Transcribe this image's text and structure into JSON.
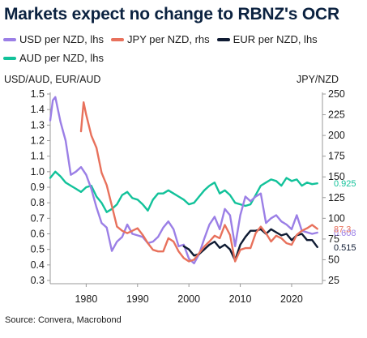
{
  "title": "Markets expect no change to RBNZ's OCR",
  "source": "Source: Convera, Macrobond",
  "legend": [
    {
      "key": "usd",
      "label": "USD per NZD, lhs",
      "color": "#9b7fe6"
    },
    {
      "key": "jpy",
      "label": "JPY per NZD, rhs",
      "color": "#e8715c"
    },
    {
      "key": "eur",
      "label": "EUR per NZD, lhs",
      "color": "#0f1b33"
    },
    {
      "key": "aud",
      "label": "AUD per NZD, lhs",
      "color": "#12c29a"
    }
  ],
  "chart_data": {
    "type": "line",
    "title": "Markets expect no change to RBNZ's OCR",
    "left_axis": {
      "label": "USD/AUD, EUR/AUD",
      "range": [
        0.3,
        1.5
      ],
      "ticks": [
        "1.5",
        "1.4",
        "1.3",
        "1.2",
        "1.1",
        "1.0",
        "0.9",
        "0.8",
        "0.7",
        "0.6",
        "0.5",
        "0.4",
        "0.3"
      ]
    },
    "right_axis": {
      "label": "JPY/NZD",
      "range": [
        25,
        250
      ],
      "ticks": [
        "250",
        "225",
        "200",
        "175",
        "150",
        "125",
        "100",
        "75",
        "50",
        "25"
      ]
    },
    "x_axis": {
      "range": [
        1973,
        2026
      ],
      "ticks": [
        "1980",
        "1990",
        "2000",
        "2010",
        "2020"
      ]
    },
    "grid": false,
    "legend_position": "top",
    "series": [
      {
        "name": "AUD per NZD, lhs",
        "axis": "left",
        "color": "#12c29a",
        "end_label": "0.925",
        "points": [
          [
            1973,
            0.96
          ],
          [
            1974,
            1.0
          ],
          [
            1975,
            0.97
          ],
          [
            1976,
            0.93
          ],
          [
            1977,
            0.91
          ],
          [
            1978,
            0.89
          ],
          [
            1979,
            0.87
          ],
          [
            1980,
            0.9
          ],
          [
            1981,
            0.91
          ],
          [
            1982,
            0.84
          ],
          [
            1983,
            0.8
          ],
          [
            1984,
            0.74
          ],
          [
            1985,
            0.76
          ],
          [
            1986,
            0.79
          ],
          [
            1987,
            0.85
          ],
          [
            1988,
            0.87
          ],
          [
            1989,
            0.83
          ],
          [
            1990,
            0.82
          ],
          [
            1991,
            0.79
          ],
          [
            1992,
            0.75
          ],
          [
            1993,
            0.82
          ],
          [
            1994,
            0.86
          ],
          [
            1995,
            0.86
          ],
          [
            1996,
            0.88
          ],
          [
            1997,
            0.86
          ],
          [
            1998,
            0.84
          ],
          [
            1999,
            0.82
          ],
          [
            2000,
            0.79
          ],
          [
            2001,
            0.8
          ],
          [
            2002,
            0.84
          ],
          [
            2003,
            0.88
          ],
          [
            2004,
            0.91
          ],
          [
            2005,
            0.93
          ],
          [
            2006,
            0.86
          ],
          [
            2007,
            0.88
          ],
          [
            2008,
            0.85
          ],
          [
            2009,
            0.8
          ],
          [
            2010,
            0.79
          ],
          [
            2011,
            0.78
          ],
          [
            2012,
            0.79
          ],
          [
            2013,
            0.85
          ],
          [
            2014,
            0.91
          ],
          [
            2015,
            0.93
          ],
          [
            2016,
            0.95
          ],
          [
            2017,
            0.94
          ],
          [
            2018,
            0.91
          ],
          [
            2019,
            0.96
          ],
          [
            2020,
            0.94
          ],
          [
            2021,
            0.95
          ],
          [
            2022,
            0.91
          ],
          [
            2023,
            0.93
          ],
          [
            2024,
            0.92
          ],
          [
            2025,
            0.925
          ]
        ]
      },
      {
        "name": "USD per NZD, lhs",
        "axis": "left",
        "color": "#9b7fe6",
        "end_label": "0.608",
        "points": [
          [
            1973,
            1.33
          ],
          [
            1973.5,
            1.46
          ],
          [
            1974,
            1.48
          ],
          [
            1974.5,
            1.4
          ],
          [
            1975,
            1.32
          ],
          [
            1976,
            1.2
          ],
          [
            1977,
            0.98
          ],
          [
            1978,
            1.0
          ],
          [
            1979,
            1.03
          ],
          [
            1980,
            0.98
          ],
          [
            1981,
            0.89
          ],
          [
            1982,
            0.77
          ],
          [
            1983,
            0.67
          ],
          [
            1984,
            0.64
          ],
          [
            1985,
            0.49
          ],
          [
            1986,
            0.55
          ],
          [
            1987,
            0.58
          ],
          [
            1988,
            0.66
          ],
          [
            1989,
            0.6
          ],
          [
            1990,
            0.59
          ],
          [
            1991,
            0.58
          ],
          [
            1992,
            0.54
          ],
          [
            1993,
            0.55
          ],
          [
            1994,
            0.58
          ],
          [
            1995,
            0.64
          ],
          [
            1996,
            0.68
          ],
          [
            1997,
            0.63
          ],
          [
            1998,
            0.52
          ],
          [
            1999,
            0.53
          ],
          [
            2000,
            0.44
          ],
          [
            2001,
            0.41
          ],
          [
            2002,
            0.47
          ],
          [
            2003,
            0.57
          ],
          [
            2004,
            0.66
          ],
          [
            2005,
            0.71
          ],
          [
            2006,
            0.63
          ],
          [
            2007,
            0.76
          ],
          [
            2008,
            0.72
          ],
          [
            2009,
            0.52
          ],
          [
            2010,
            0.72
          ],
          [
            2011,
            0.84
          ],
          [
            2012,
            0.81
          ],
          [
            2013,
            0.84
          ],
          [
            2014,
            0.86
          ],
          [
            2015,
            0.67
          ],
          [
            2016,
            0.7
          ],
          [
            2017,
            0.72
          ],
          [
            2018,
            0.68
          ],
          [
            2019,
            0.66
          ],
          [
            2020,
            0.63
          ],
          [
            2021,
            0.72
          ],
          [
            2022,
            0.62
          ],
          [
            2023,
            0.61
          ],
          [
            2024,
            0.6
          ],
          [
            2025,
            0.608
          ]
        ]
      },
      {
        "name": "EUR per NZD, lhs",
        "axis": "left",
        "color": "#0f1b33",
        "end_label": "0.515",
        "points": [
          [
            1999,
            0.52
          ],
          [
            2000,
            0.5
          ],
          [
            2001,
            0.46
          ],
          [
            2002,
            0.47
          ],
          [
            2003,
            0.5
          ],
          [
            2004,
            0.53
          ],
          [
            2005,
            0.55
          ],
          [
            2006,
            0.51
          ],
          [
            2007,
            0.53
          ],
          [
            2008,
            0.5
          ],
          [
            2009,
            0.43
          ],
          [
            2010,
            0.53
          ],
          [
            2011,
            0.58
          ],
          [
            2012,
            0.62
          ],
          [
            2013,
            0.62
          ],
          [
            2014,
            0.63
          ],
          [
            2015,
            0.6
          ],
          [
            2016,
            0.63
          ],
          [
            2017,
            0.61
          ],
          [
            2018,
            0.59
          ],
          [
            2019,
            0.6
          ],
          [
            2020,
            0.56
          ],
          [
            2021,
            0.59
          ],
          [
            2022,
            0.6
          ],
          [
            2023,
            0.56
          ],
          [
            2024,
            0.56
          ],
          [
            2025,
            0.515
          ]
        ]
      },
      {
        "name": "JPY per NZD, rhs",
        "axis": "right",
        "color": "#e8715c",
        "end_label": "87.3",
        "points": [
          [
            1979,
            205
          ],
          [
            1979.5,
            240
          ],
          [
            1980,
            225
          ],
          [
            1981,
            200
          ],
          [
            1982,
            185
          ],
          [
            1983,
            155
          ],
          [
            1984,
            140
          ],
          [
            1985,
            115
          ],
          [
            1986,
            90
          ],
          [
            1987,
            85
          ],
          [
            1988,
            82
          ],
          [
            1989,
            85
          ],
          [
            1990,
            88
          ],
          [
            1991,
            80
          ],
          [
            1992,
            70
          ],
          [
            1993,
            62
          ],
          [
            1994,
            60
          ],
          [
            1995,
            60
          ],
          [
            1996,
            76
          ],
          [
            1997,
            72
          ],
          [
            1998,
            60
          ],
          [
            1999,
            52
          ],
          [
            2000,
            48
          ],
          [
            2001,
            50
          ],
          [
            2002,
            58
          ],
          [
            2003,
            66
          ],
          [
            2004,
            72
          ],
          [
            2005,
            79
          ],
          [
            2006,
            76
          ],
          [
            2007,
            92
          ],
          [
            2008,
            80
          ],
          [
            2009,
            48
          ],
          [
            2010,
            62
          ],
          [
            2011,
            64
          ],
          [
            2012,
            64
          ],
          [
            2013,
            82
          ],
          [
            2014,
            90
          ],
          [
            2015,
            82
          ],
          [
            2016,
            72
          ],
          [
            2017,
            79
          ],
          [
            2018,
            76
          ],
          [
            2019,
            70
          ],
          [
            2020,
            68
          ],
          [
            2021,
            80
          ],
          [
            2022,
            85
          ],
          [
            2023,
            88
          ],
          [
            2024,
            92
          ],
          [
            2025,
            87.3
          ]
        ]
      }
    ]
  }
}
